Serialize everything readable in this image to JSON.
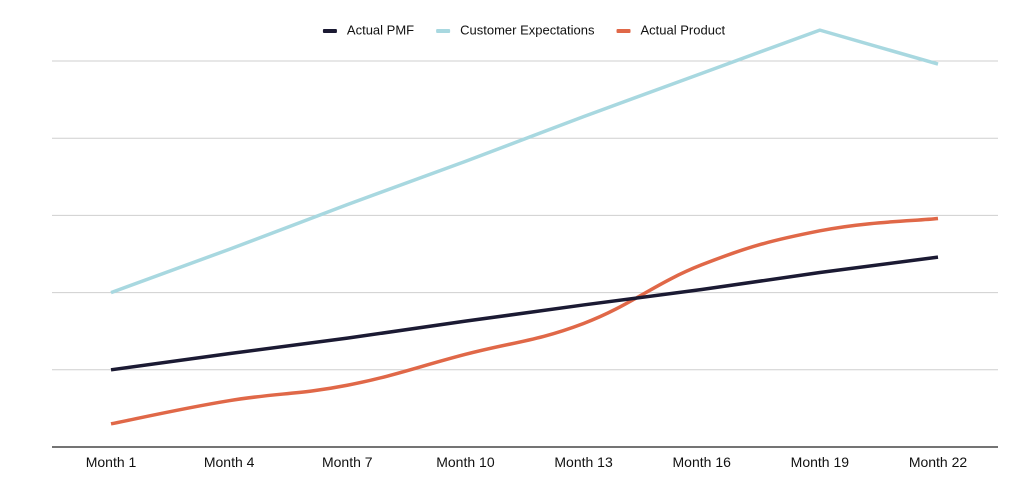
{
  "chart_data": {
    "type": "line",
    "title": "",
    "xlabel": "",
    "ylabel": "",
    "categories": [
      "Month 1",
      "Month 4",
      "Month 7",
      "Month 10",
      "Month 13",
      "Month 16",
      "Month 19",
      "Month 22"
    ],
    "x": [
      1,
      4,
      7,
      10,
      13,
      16,
      19,
      22
    ],
    "xlim": [
      1,
      22
    ],
    "ylim": [
      0,
      5
    ],
    "y_gridlines": [
      1,
      2,
      3,
      4,
      5
    ],
    "grid": true,
    "legend_position": "top-center",
    "series": [
      {
        "name": "Actual PMF",
        "color": "#1b1a33",
        "smooth": false,
        "values": [
          1.0,
          1.21,
          1.41,
          1.63,
          1.84,
          2.04,
          2.26,
          2.46
        ]
      },
      {
        "name": "Customer Expectations",
        "color": "#a8d8e0",
        "smooth": false,
        "values": [
          2.0,
          2.56,
          3.14,
          3.7,
          4.28,
          4.84,
          5.4,
          4.96
        ]
      },
      {
        "name": "Actual Product",
        "color": "#e06848",
        "smooth": true,
        "values": [
          0.3,
          0.6,
          0.8,
          1.2,
          1.6,
          2.36,
          2.8,
          2.96
        ]
      }
    ]
  }
}
